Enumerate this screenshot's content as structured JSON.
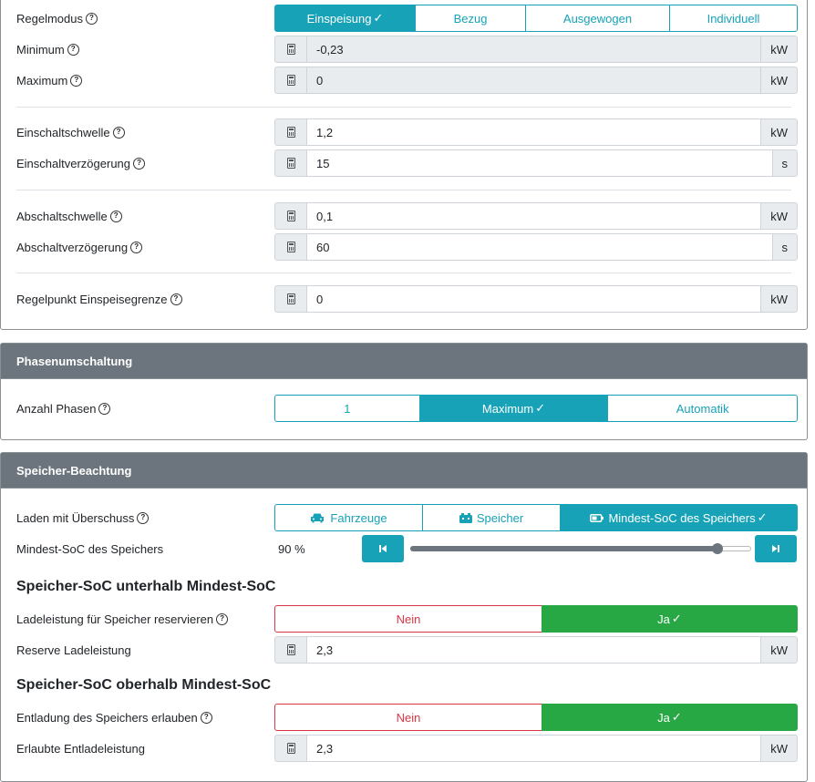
{
  "regel": {
    "modus_label": "Regelmodus",
    "modus_options": [
      "Einspeisung",
      "Bezug",
      "Ausgewogen",
      "Individuell"
    ],
    "minimum_label": "Minimum",
    "minimum_value": "-0,23",
    "maximum_label": "Maximum",
    "maximum_value": "0",
    "einschaltschwelle_label": "Einschaltschwelle",
    "einschaltschwelle_value": "1,2",
    "einschaltverzoegerung_label": "Einschaltverzögerung",
    "einschaltverzoegerung_value": "15",
    "abschaltschwelle_label": "Abschaltschwelle",
    "abschaltschwelle_value": "0,1",
    "abschaltverzoegerung_label": "Abschaltverzögerung",
    "abschaltverzoegerung_value": "60",
    "regelpunkt_label": "Regelpunkt Einspeisegrenze",
    "regelpunkt_value": "0",
    "unit_kw": "kW",
    "unit_s": "s"
  },
  "phasen": {
    "title": "Phasenumschaltung",
    "anzahl_label": "Anzahl Phasen",
    "options": [
      "1",
      "Maximum",
      "Automatik"
    ]
  },
  "speicher": {
    "title": "Speicher-Beachtung",
    "laden_label": "Laden mit Überschuss",
    "laden_options": [
      "Fahrzeuge",
      "Speicher",
      "Mindest-SoC des Speichers"
    ],
    "mindest_soc_label": "Mindest-SoC des Speichers",
    "mindest_soc_value": "90 %",
    "mindest_soc_fraction": 0.9,
    "unterhalb_heading": "Speicher-SoC unterhalb Mindest-SoC",
    "ladeleistung_label": "Ladeleistung für Speicher reservieren",
    "reserve_label": "Reserve Ladeleistung",
    "reserve_value": "2,3",
    "oberhalb_heading": "Speicher-SoC oberhalb Mindest-SoC",
    "entladung_label": "Entladung des Speichers erlauben",
    "erlaubte_label": "Erlaubte Entladeleistung",
    "erlaubte_value": "2,3",
    "nein": "Nein",
    "ja": "Ja"
  },
  "icons": {
    "help": "?",
    "check": "✓"
  },
  "colors": {
    "accent": "#17a2b8",
    "success": "#28a745",
    "danger": "#dc3545",
    "header": "#6c757d"
  }
}
